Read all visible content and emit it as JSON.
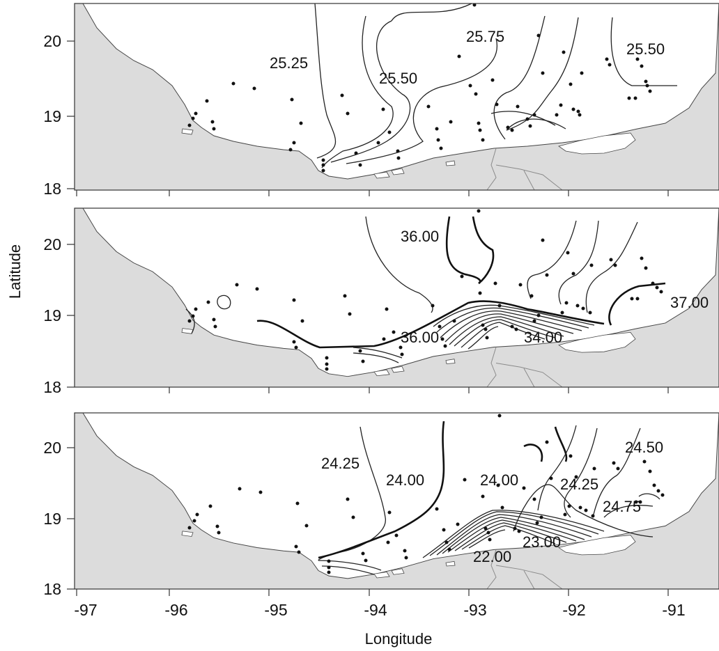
{
  "axes": {
    "xlabel": "Longitude",
    "ylabel": "Latitude",
    "x_ticks": [
      "-97",
      "-96",
      "-95",
      "-94",
      "-93",
      "-92",
      "-91"
    ],
    "y_ticks": [
      "18",
      "19",
      "20"
    ]
  },
  "panels": [
    {
      "contour_labels": [
        "25.25",
        "25.50",
        "25.75",
        "25.50"
      ]
    },
    {
      "contour_labels": [
        "36.00",
        "36.00",
        "34.00",
        "37.00"
      ]
    },
    {
      "contour_labels": [
        "24.25",
        "24.00",
        "24.00",
        "24.50",
        "24.25",
        "24.75",
        "23.00",
        "22.00"
      ]
    }
  ],
  "colors": {
    "land": "#dcdcdc",
    "sea": "#ffffff",
    "isoline": "#222222",
    "station": "#111111"
  }
}
